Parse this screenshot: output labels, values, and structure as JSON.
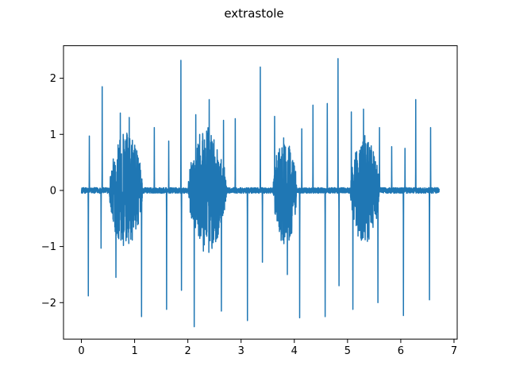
{
  "chart_data": {
    "type": "line",
    "title": "extrastole",
    "xlabel": "",
    "ylabel": "",
    "xlim": [
      -0.336,
      7.06
    ],
    "ylim": [
      -2.65,
      2.58
    ],
    "xticks": [
      0,
      1,
      2,
      3,
      4,
      5,
      6,
      7
    ],
    "yticks": [
      -2,
      -1,
      0,
      1,
      2
    ],
    "xtick_labels": [
      "0",
      "1",
      "2",
      "3",
      "4",
      "5",
      "6",
      "7"
    ],
    "ytick_labels": [
      "−2",
      "−1",
      "0",
      "1",
      "2"
    ],
    "grid": false,
    "legend": "none",
    "color": "#1f77b4",
    "series": [
      {
        "duration": 6.72,
        "baseline_noise": 0.05,
        "spikes": [
          {
            "t": 0.13,
            "v": -1.88
          },
          {
            "t": 0.15,
            "v": 0.97
          },
          {
            "t": 0.37,
            "v": -1.03
          },
          {
            "t": 0.39,
            "v": 1.85
          },
          {
            "t": 0.65,
            "v": -1.55
          },
          {
            "t": 0.73,
            "v": 1.38
          },
          {
            "t": 0.9,
            "v": 1.3
          },
          {
            "t": 1.13,
            "v": -2.25
          },
          {
            "t": 1.37,
            "v": 1.12
          },
          {
            "t": 1.6,
            "v": -2.12
          },
          {
            "t": 1.64,
            "v": 0.88
          },
          {
            "t": 1.87,
            "v": 2.32
          },
          {
            "t": 1.88,
            "v": -1.78
          },
          {
            "t": 2.12,
            "v": -2.43
          },
          {
            "t": 2.15,
            "v": 1.35
          },
          {
            "t": 2.4,
            "v": 1.62
          },
          {
            "t": 2.63,
            "v": -2.15
          },
          {
            "t": 2.67,
            "v": 1.25
          },
          {
            "t": 2.89,
            "v": 1.28
          },
          {
            "t": 3.12,
            "v": -2.32
          },
          {
            "t": 3.36,
            "v": 2.2
          },
          {
            "t": 3.4,
            "v": -1.28
          },
          {
            "t": 3.63,
            "v": 1.32
          },
          {
            "t": 3.87,
            "v": -1.5
          },
          {
            "t": 4.1,
            "v": -2.27
          },
          {
            "t": 4.14,
            "v": 1.1
          },
          {
            "t": 4.35,
            "v": 1.52
          },
          {
            "t": 4.58,
            "v": -2.25
          },
          {
            "t": 4.62,
            "v": 1.55
          },
          {
            "t": 4.82,
            "v": 2.35
          },
          {
            "t": 4.84,
            "v": -1.7
          },
          {
            "t": 5.07,
            "v": 1.4
          },
          {
            "t": 5.1,
            "v": -2.12
          },
          {
            "t": 5.3,
            "v": 1.45
          },
          {
            "t": 5.57,
            "v": -2.0
          },
          {
            "t": 5.6,
            "v": 1.12
          },
          {
            "t": 5.83,
            "v": 0.78
          },
          {
            "t": 6.05,
            "v": -2.23
          },
          {
            "t": 6.08,
            "v": 0.75
          },
          {
            "t": 6.28,
            "v": 1.62
          },
          {
            "t": 6.54,
            "v": -1.95
          },
          {
            "t": 6.56,
            "v": 1.12
          }
        ],
        "bursts": [
          {
            "start": 0.52,
            "end": 1.15,
            "amplitude": 1.05
          },
          {
            "start": 2.0,
            "end": 2.73,
            "amplitude": 1.1
          },
          {
            "start": 3.6,
            "end": 4.05,
            "amplitude": 0.95
          },
          {
            "start": 5.05,
            "end": 5.6,
            "amplitude": 1.0
          }
        ]
      }
    ]
  }
}
